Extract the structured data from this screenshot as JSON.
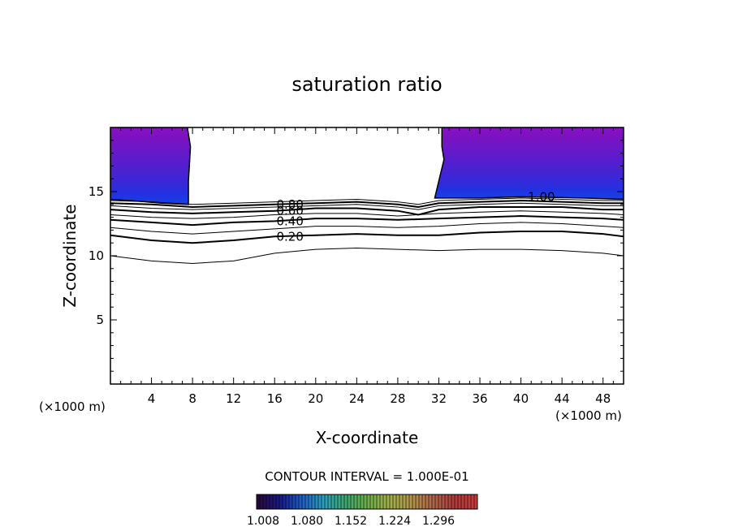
{
  "chart_data": {
    "type": "contour",
    "title": "saturation ratio",
    "xlabel": "X-coordinate",
    "ylabel": "Z-coordinate",
    "x_unit_left": "(×1000 m)",
    "x_unit_right": "(×1000 m)",
    "xlim": [
      0,
      50
    ],
    "ylim": [
      0,
      20
    ],
    "x_ticks": [
      4,
      8,
      12,
      16,
      20,
      24,
      28,
      32,
      36,
      40,
      44,
      48
    ],
    "x_tick_labels": [
      "4",
      "8",
      "12",
      "16",
      "20",
      "24",
      "28",
      "32",
      "36",
      "40",
      "44",
      "48"
    ],
    "y_ticks": [
      5,
      10,
      15
    ],
    "y_tick_labels": [
      "5",
      "10",
      "15"
    ],
    "contour_interval_text": "CONTOUR INTERVAL = 1.000E-01",
    "contour_labels": [
      {
        "text": "0.20",
        "x": 17.5,
        "y": 11.5
      },
      {
        "text": "0.40",
        "x": 17.5,
        "y": 12.7
      },
      {
        "text": "0.60",
        "x": 17.5,
        "y": 13.5
      },
      {
        "text": "0.80",
        "x": 17.5,
        "y": 14.0
      },
      {
        "text": "1.00",
        "x": 42,
        "y": 14.6
      }
    ],
    "contour_lines": [
      {
        "level": 0.1,
        "bold": false,
        "points": [
          [
            0,
            10.0
          ],
          [
            4,
            9.6
          ],
          [
            8,
            9.4
          ],
          [
            12,
            9.6
          ],
          [
            16,
            10.2
          ],
          [
            20,
            10.5
          ],
          [
            24,
            10.6
          ],
          [
            28,
            10.5
          ],
          [
            32,
            10.4
          ],
          [
            36,
            10.5
          ],
          [
            40,
            10.5
          ],
          [
            44,
            10.4
          ],
          [
            48,
            10.2
          ],
          [
            50,
            10.0
          ]
        ]
      },
      {
        "level": 0.2,
        "bold": true,
        "points": [
          [
            0,
            11.6
          ],
          [
            4,
            11.2
          ],
          [
            8,
            11.0
          ],
          [
            12,
            11.2
          ],
          [
            16,
            11.5
          ],
          [
            20,
            11.6
          ],
          [
            24,
            11.7
          ],
          [
            28,
            11.6
          ],
          [
            32,
            11.6
          ],
          [
            36,
            11.8
          ],
          [
            40,
            11.9
          ],
          [
            44,
            11.9
          ],
          [
            48,
            11.7
          ],
          [
            50,
            11.5
          ]
        ]
      },
      {
        "level": 0.3,
        "bold": false,
        "points": [
          [
            0,
            12.2
          ],
          [
            4,
            11.9
          ],
          [
            8,
            11.7
          ],
          [
            12,
            11.9
          ],
          [
            16,
            12.1
          ],
          [
            20,
            12.3
          ],
          [
            24,
            12.3
          ],
          [
            28,
            12.2
          ],
          [
            32,
            12.3
          ],
          [
            36,
            12.5
          ],
          [
            40,
            12.6
          ],
          [
            44,
            12.5
          ],
          [
            48,
            12.3
          ],
          [
            50,
            12.2
          ]
        ]
      },
      {
        "level": 0.4,
        "bold": true,
        "points": [
          [
            0,
            12.8
          ],
          [
            4,
            12.6
          ],
          [
            8,
            12.4
          ],
          [
            12,
            12.6
          ],
          [
            16,
            12.7
          ],
          [
            20,
            12.9
          ],
          [
            24,
            12.9
          ],
          [
            28,
            12.8
          ],
          [
            32,
            12.9
          ],
          [
            36,
            13.0
          ],
          [
            40,
            13.1
          ],
          [
            44,
            13.0
          ],
          [
            48,
            12.9
          ],
          [
            50,
            12.8
          ]
        ]
      },
      {
        "level": 0.5,
        "bold": false,
        "points": [
          [
            0,
            13.2
          ],
          [
            4,
            13.0
          ],
          [
            8,
            12.9
          ],
          [
            12,
            13.0
          ],
          [
            16,
            13.2
          ],
          [
            20,
            13.3
          ],
          [
            24,
            13.3
          ],
          [
            28,
            13.1
          ],
          [
            32,
            13.3
          ],
          [
            36,
            13.4
          ],
          [
            40,
            13.5
          ],
          [
            44,
            13.4
          ],
          [
            48,
            13.3
          ],
          [
            50,
            13.2
          ]
        ]
      },
      {
        "level": 0.6,
        "bold": true,
        "points": [
          [
            0,
            13.6
          ],
          [
            4,
            13.4
          ],
          [
            8,
            13.3
          ],
          [
            12,
            13.4
          ],
          [
            16,
            13.5
          ],
          [
            20,
            13.7
          ],
          [
            24,
            13.7
          ],
          [
            28,
            13.5
          ],
          [
            30,
            13.2
          ],
          [
            32,
            13.6
          ],
          [
            36,
            13.8
          ],
          [
            40,
            13.8
          ],
          [
            44,
            13.8
          ],
          [
            48,
            13.6
          ],
          [
            50,
            13.6
          ]
        ]
      },
      {
        "level": 0.7,
        "bold": false,
        "points": [
          [
            0,
            13.9
          ],
          [
            4,
            13.7
          ],
          [
            8,
            13.6
          ],
          [
            12,
            13.7
          ],
          [
            16,
            13.8
          ],
          [
            20,
            13.9
          ],
          [
            24,
            14.0
          ],
          [
            28,
            13.8
          ],
          [
            30,
            13.6
          ],
          [
            32,
            13.9
          ],
          [
            36,
            14.0
          ],
          [
            40,
            14.1
          ],
          [
            44,
            14.0
          ],
          [
            48,
            13.9
          ],
          [
            50,
            13.9
          ]
        ]
      },
      {
        "level": 0.8,
        "bold": true,
        "points": [
          [
            0,
            14.1
          ],
          [
            4,
            14.0
          ],
          [
            8,
            13.8
          ],
          [
            12,
            13.9
          ],
          [
            16,
            14.0
          ],
          [
            20,
            14.1
          ],
          [
            24,
            14.2
          ],
          [
            28,
            14.0
          ],
          [
            30,
            13.8
          ],
          [
            32,
            14.1
          ],
          [
            36,
            14.2
          ],
          [
            40,
            14.3
          ],
          [
            44,
            14.2
          ],
          [
            48,
            14.1
          ],
          [
            50,
            14.1
          ]
        ]
      },
      {
        "level": 0.9,
        "bold": false,
        "points": [
          [
            0,
            14.3
          ],
          [
            4,
            14.2
          ],
          [
            8,
            14.0
          ],
          [
            12,
            14.1
          ],
          [
            16,
            14.2
          ],
          [
            20,
            14.3
          ],
          [
            24,
            14.4
          ],
          [
            28,
            14.2
          ],
          [
            30,
            14.0
          ],
          [
            32,
            14.3
          ],
          [
            36,
            14.4
          ],
          [
            40,
            14.5
          ],
          [
            44,
            14.4
          ],
          [
            48,
            14.3
          ],
          [
            50,
            14.3
          ]
        ]
      }
    ],
    "filled_regions": [
      {
        "name": "left-supersaturated-region",
        "outline": [
          [
            0,
            20
          ],
          [
            7.5,
            20
          ],
          [
            7.8,
            18.5
          ],
          [
            7.6,
            15.8
          ],
          [
            7.6,
            14.0
          ],
          [
            5,
            14.1
          ],
          [
            2,
            14.3
          ],
          [
            0,
            14.4
          ]
        ]
      },
      {
        "name": "right-supersaturated-region",
        "outline": [
          [
            32.3,
            20
          ],
          [
            50,
            20
          ],
          [
            50,
            14.4
          ],
          [
            46,
            14.5
          ],
          [
            40,
            14.6
          ],
          [
            36,
            14.5
          ],
          [
            31.6,
            14.5
          ],
          [
            32.5,
            17.5
          ],
          [
            32.3,
            18.5
          ]
        ]
      }
    ],
    "colorbar": {
      "labels": [
        "1.008",
        "1.080",
        "1.152",
        "1.224",
        "1.296"
      ],
      "colors": [
        "#2a0a3a",
        "#1a1a8a",
        "#1e5ec8",
        "#2aa0c0",
        "#3aa870",
        "#6ab048",
        "#a0b048",
        "#b09848",
        "#b06848",
        "#b03a3a",
        "#c83a3a"
      ]
    },
    "fill_palette": [
      "#8a10c8",
      "#7a12c0",
      "#6a18c8",
      "#5a1ccc",
      "#4a22d0",
      "#3828d8",
      "#2430e0",
      "#1442ea"
    ]
  }
}
